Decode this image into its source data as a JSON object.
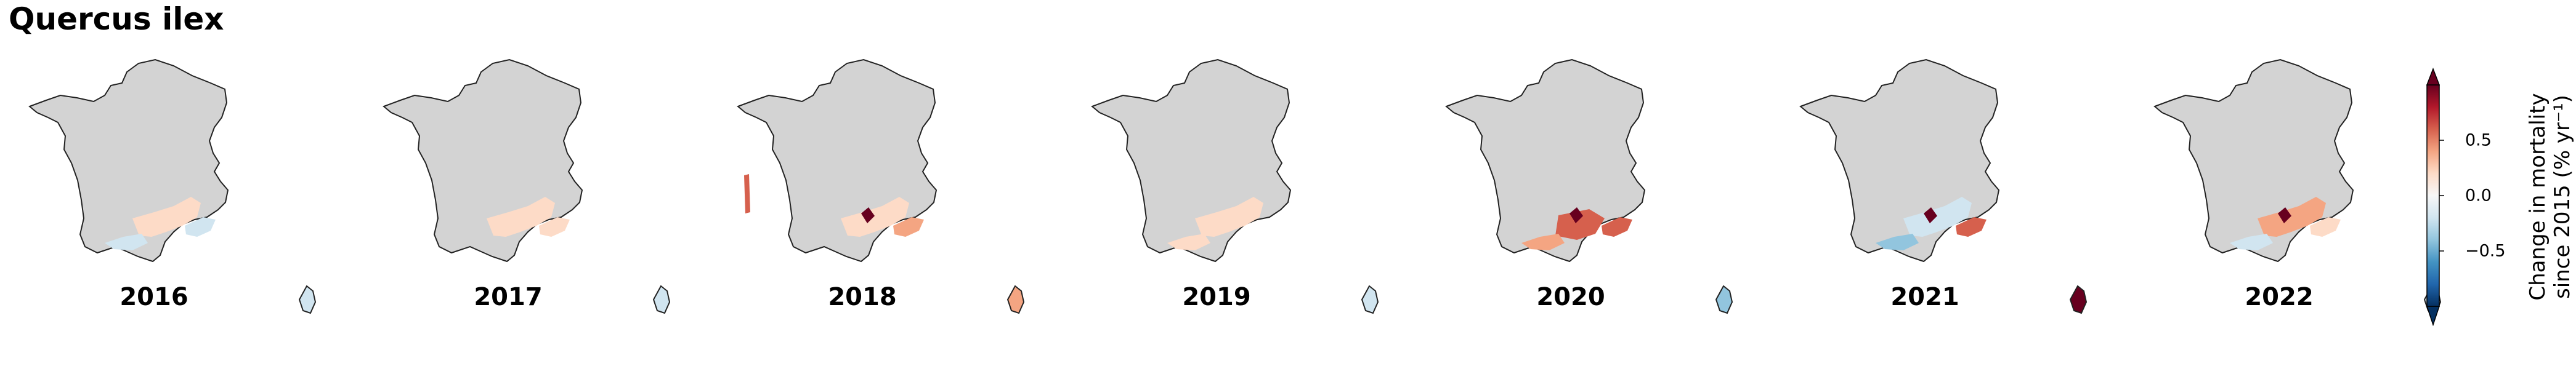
{
  "title": "Quercus ilex",
  "years": [
    "2016",
    "2017",
    "2018",
    "2019",
    "2020",
    "2021",
    "2022"
  ],
  "colorbar": {
    "ticks": [
      "0.5",
      "0.0",
      "−0.5"
    ],
    "tick_values": [
      0.5,
      0.0,
      -0.5
    ],
    "range": [
      -0.9,
      0.9
    ],
    "label_line1": "Change in mortality",
    "label_line2": "since 2015 (% yr⁻¹)",
    "colormap": [
      "#053061",
      "#2166ac",
      "#4393c3",
      "#92c5de",
      "#d1e5f0",
      "#f7f7f7",
      "#fddbc7",
      "#f4a582",
      "#d6604d",
      "#b2182b",
      "#67001f"
    ]
  },
  "colors": {
    "land": "#d3d3d3",
    "border": "#222222",
    "deep_red": "#67001f",
    "red": "#d6604d",
    "light_red": "#f4a582",
    "pale_red": "#fddbc7",
    "pale_blue": "#d1e5f0",
    "light_blue": "#92c5de"
  }
}
